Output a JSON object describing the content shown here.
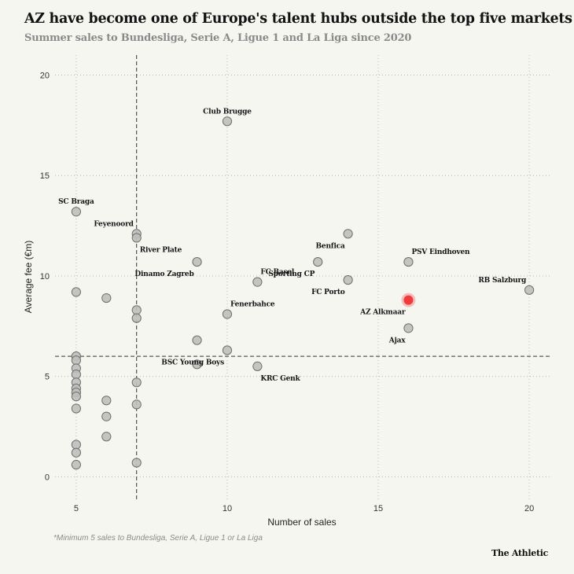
{
  "header": {
    "title": "AZ have become one of Europe's talent hubs outside the top five markets",
    "subtitle": "Summer sales to Bundesliga, Serie A, Ligue 1 and La Liga since 2020"
  },
  "footer": {
    "footnote": "*Minimum 5 sales to Bundesliga, Serie A, Ligue 1 or La Liga",
    "brand": "The Athletic"
  },
  "colors": {
    "point_fill": "#bfbfbb",
    "point_stroke": "#6e6e6e",
    "highlight": "#ef3b3b",
    "grid": "#b8b8b8",
    "reference_line": "#333333"
  },
  "chart_data": {
    "type": "scatter",
    "xlabel": "Number of sales",
    "ylabel": "Average fee (€m)",
    "xlim": [
      4.3,
      20.7
    ],
    "ylim": [
      -1.2,
      21.0
    ],
    "xticks": [
      5,
      10,
      15,
      20
    ],
    "yticks": [
      0,
      5,
      10,
      15,
      20
    ],
    "grid": true,
    "reference_lines": {
      "x": 7,
      "y": 6
    },
    "points": [
      {
        "x": 10,
        "y": 17.7,
        "label": "Club Brugge",
        "label_pos": "above"
      },
      {
        "x": 5,
        "y": 13.2,
        "label": "SC Braga",
        "label_pos": "above"
      },
      {
        "x": 7,
        "y": 12.1,
        "label": "Feyenoord",
        "label_pos": "above-left"
      },
      {
        "x": 7,
        "y": 11.9,
        "label": "River Plate",
        "label_pos": "below-right"
      },
      {
        "x": 14,
        "y": 12.1,
        "label": "Benfica",
        "label_pos": "below-left"
      },
      {
        "x": 9,
        "y": 10.7,
        "label": "Dinamo Zagreb",
        "label_pos": "below-left"
      },
      {
        "x": 13,
        "y": 10.7,
        "label": "Sporting CP",
        "label_pos": "below-left"
      },
      {
        "x": 16,
        "y": 10.7,
        "label": "PSV Eindhoven",
        "label_pos": "above-right"
      },
      {
        "x": 11,
        "y": 9.7,
        "label": "FC Basel",
        "label_pos": "above-right"
      },
      {
        "x": 14,
        "y": 9.8,
        "label": "FC Porto",
        "label_pos": "below-left"
      },
      {
        "x": 20,
        "y": 9.3,
        "label": "RB Salzburg",
        "label_pos": "above-left"
      },
      {
        "x": 16,
        "y": 8.8,
        "label": "AZ Alkmaar",
        "label_pos": "below-left",
        "highlight": true
      },
      {
        "x": 10,
        "y": 8.1,
        "label": "Fenerbahce",
        "label_pos": "above-right"
      },
      {
        "x": 16,
        "y": 7.4,
        "label": "Ajax",
        "label_pos": "below-left"
      },
      {
        "x": 10,
        "y": 6.3,
        "label": "BSC Young Boys",
        "label_pos": "below-left"
      },
      {
        "x": 11,
        "y": 5.5,
        "label": "KRC Genk",
        "label_pos": "below-right"
      },
      {
        "x": 5,
        "y": 9.2
      },
      {
        "x": 6,
        "y": 8.9
      },
      {
        "x": 7,
        "y": 8.3
      },
      {
        "x": 7,
        "y": 7.9
      },
      {
        "x": 9,
        "y": 6.8
      },
      {
        "x": 9,
        "y": 5.6
      },
      {
        "x": 5,
        "y": 6.0
      },
      {
        "x": 5,
        "y": 5.8
      },
      {
        "x": 5,
        "y": 5.4
      },
      {
        "x": 5,
        "y": 5.1
      },
      {
        "x": 5,
        "y": 4.7
      },
      {
        "x": 5,
        "y": 4.4
      },
      {
        "x": 5,
        "y": 4.2
      },
      {
        "x": 5,
        "y": 4.0
      },
      {
        "x": 5,
        "y": 3.4
      },
      {
        "x": 5,
        "y": 1.6
      },
      {
        "x": 5,
        "y": 1.2
      },
      {
        "x": 5,
        "y": 0.6
      },
      {
        "x": 6,
        "y": 3.8
      },
      {
        "x": 6,
        "y": 3.0
      },
      {
        "x": 6,
        "y": 2.0
      },
      {
        "x": 7,
        "y": 4.7
      },
      {
        "x": 7,
        "y": 3.6
      },
      {
        "x": 7,
        "y": 0.7
      }
    ]
  }
}
